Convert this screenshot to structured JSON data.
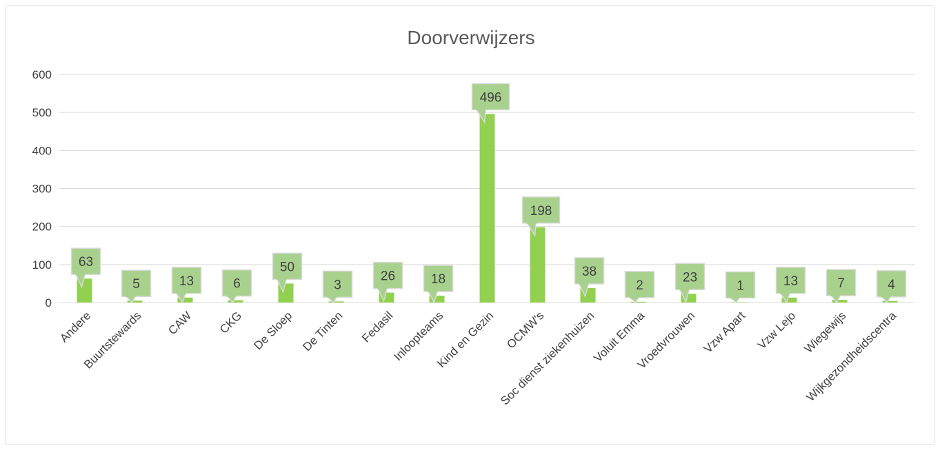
{
  "chart_data": {
    "type": "bar",
    "title": "Doorverwijzers",
    "xlabel": "",
    "ylabel": "",
    "ylim": [
      0,
      600
    ],
    "yticks": [
      0,
      100,
      200,
      300,
      400,
      500,
      600
    ],
    "grid": true,
    "legend": "none",
    "categories": [
      "Andere",
      "Buurtstewards",
      "CAW",
      "CKG",
      "De Sloep",
      "De Tinten",
      "Fedasil",
      "Inloopteams",
      "Kind en Gezin",
      "OCMW's",
      "Soc dienst ziekenhuizen",
      "Voluit Emma",
      "Vroedvrouwen",
      "Vzw Apart",
      "Vzw Lejo",
      "Wiegewijs",
      "Wijkgezondheidscentra"
    ],
    "values": [
      63,
      5,
      13,
      6,
      50,
      3,
      26,
      18,
      496,
      198,
      38,
      2,
      23,
      1,
      13,
      7,
      4
    ],
    "colors": {
      "bar": "#92d050",
      "label_fill": "#a9d18e",
      "label_stroke": "#d9d9d9",
      "grid": "#d9d9d9",
      "text": "#404040",
      "title": "#595959"
    }
  }
}
